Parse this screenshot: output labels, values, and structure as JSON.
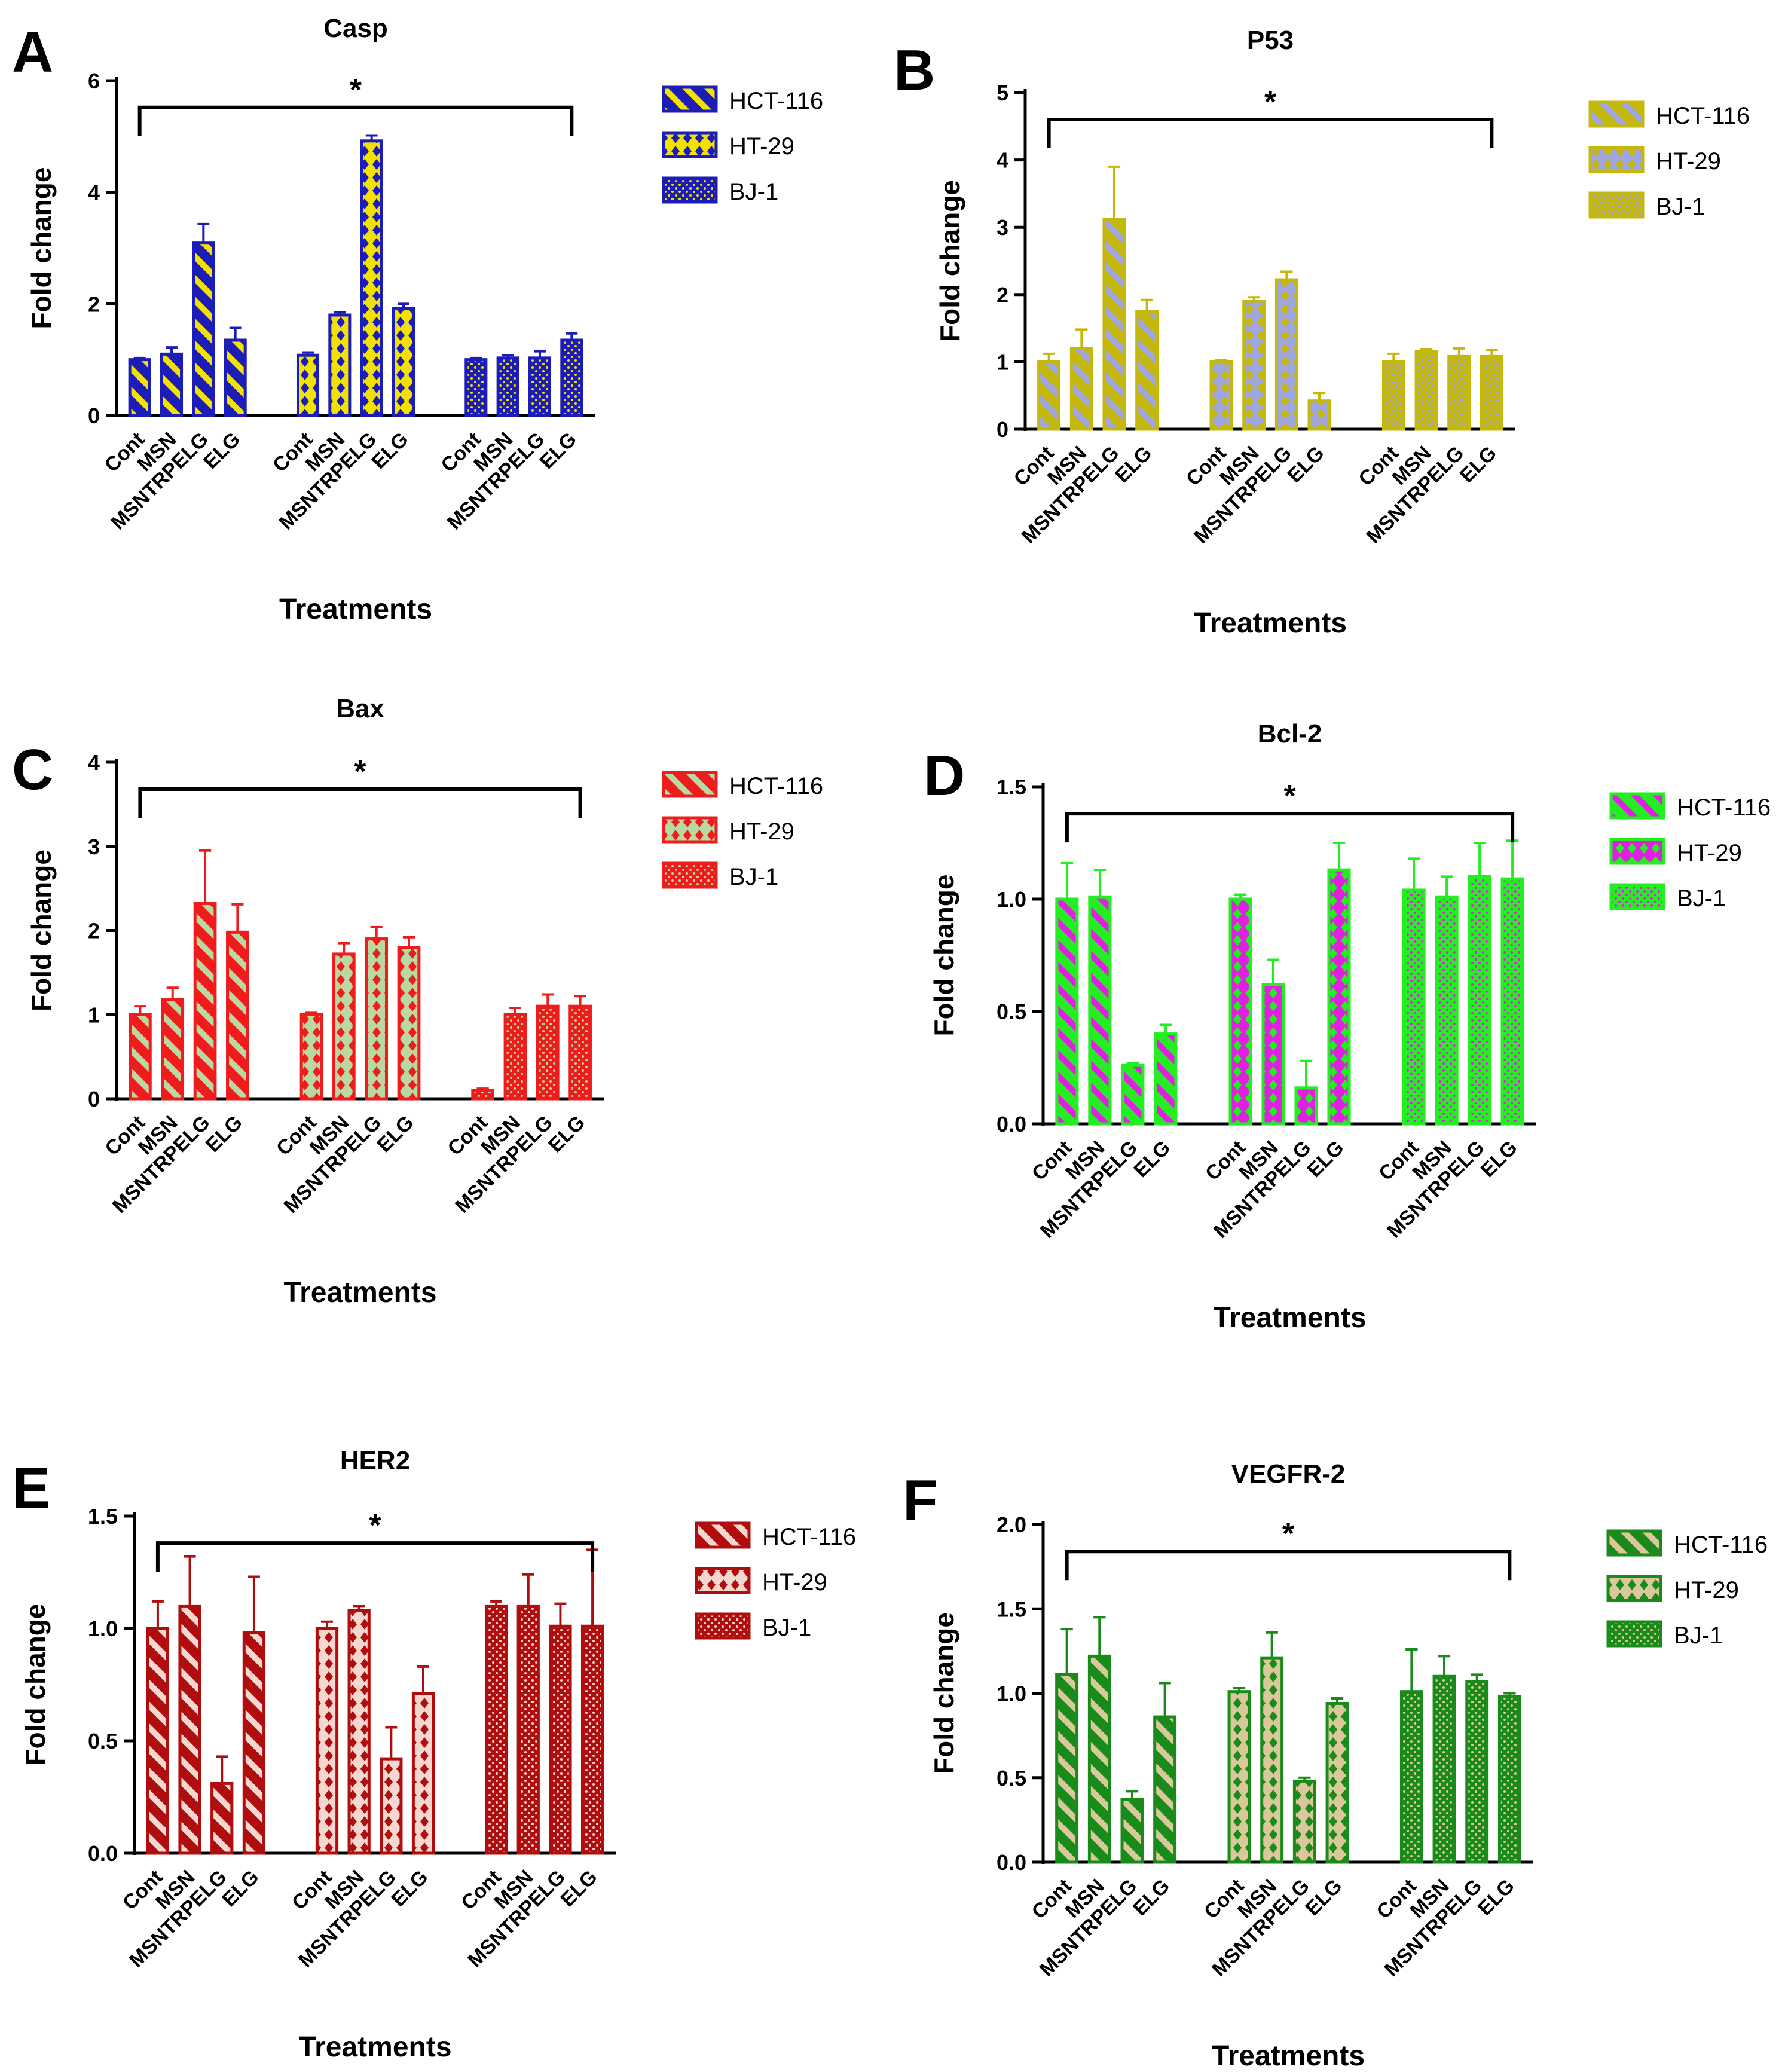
{
  "chart_data": [
    {
      "panel": "A",
      "type": "bar",
      "title": "Casp",
      "xlabel": "Treatments",
      "ylabel": "Fold change",
      "ylim": [
        0,
        6
      ],
      "ticks": [
        "0",
        "2",
        "4",
        "6"
      ],
      "tick_values": [
        0,
        2,
        4,
        6
      ],
      "significance": "*",
      "color": "#1C1CB8",
      "fill": "#F2E200",
      "categories": [
        "Cont",
        "MSN",
        "MSNTRPELG",
        "ELG"
      ],
      "series": [
        {
          "name": "HCT-116",
          "pattern": "diag",
          "values": [
            1.0,
            1.1,
            3.1,
            1.35
          ],
          "errors": [
            0.03,
            0.12,
            0.33,
            0.22
          ]
        },
        {
          "name": "HT-29",
          "pattern": "diamond",
          "values": [
            1.08,
            1.8,
            4.92,
            1.92
          ],
          "errors": [
            0.05,
            0.05,
            0.1,
            0.08
          ]
        },
        {
          "name": "BJ-1",
          "pattern": "dots",
          "values": [
            1.0,
            1.03,
            1.03,
            1.35
          ],
          "errors": [
            0.03,
            0.05,
            0.12,
            0.12
          ]
        }
      ]
    },
    {
      "panel": "B",
      "type": "bar",
      "title": "P53",
      "xlabel": "Treatments",
      "ylabel": "Fold change",
      "ylim": [
        0,
        5
      ],
      "ticks": [
        "0",
        "1",
        "2",
        "3",
        "4",
        "5"
      ],
      "tick_values": [
        0,
        1,
        2,
        3,
        4,
        5
      ],
      "significance": "*",
      "color": "#C4B80C",
      "fill": "#9FA6E0",
      "categories": [
        "Cont",
        "MSN",
        "MSNTRPELG",
        "ELG"
      ],
      "series": [
        {
          "name": "HCT-116",
          "pattern": "diag",
          "values": [
            1.0,
            1.2,
            3.12,
            1.75
          ],
          "errors": [
            0.12,
            0.28,
            0.78,
            0.17
          ]
        },
        {
          "name": "HT-29",
          "pattern": "diamond",
          "values": [
            1.0,
            1.9,
            2.22,
            0.42
          ],
          "errors": [
            0.03,
            0.06,
            0.12,
            0.12
          ]
        },
        {
          "name": "BJ-1",
          "pattern": "dots",
          "values": [
            1.0,
            1.15,
            1.08,
            1.08
          ],
          "errors": [
            0.12,
            0.04,
            0.12,
            0.1
          ]
        }
      ]
    },
    {
      "panel": "C",
      "type": "bar",
      "title": "Bax",
      "xlabel": "Treatments",
      "ylabel": "Fold change",
      "ylim": [
        0,
        4
      ],
      "ticks": [
        "0",
        "1",
        "2",
        "3",
        "4"
      ],
      "tick_values": [
        0,
        1,
        2,
        3,
        4
      ],
      "significance": "*",
      "color": "#EE1C1C",
      "fill": "#B9D9A0",
      "categories": [
        "Cont",
        "MSN",
        "MSNTRPELG",
        "ELG"
      ],
      "series": [
        {
          "name": "HCT-116",
          "pattern": "diag",
          "values": [
            1.0,
            1.18,
            2.32,
            1.98
          ],
          "errors": [
            0.1,
            0.14,
            0.63,
            0.33
          ]
        },
        {
          "name": "HT-29",
          "pattern": "diamond",
          "values": [
            1.0,
            1.72,
            1.9,
            1.8
          ],
          "errors": [
            0.02,
            0.13,
            0.14,
            0.12
          ]
        },
        {
          "name": "BJ-1",
          "pattern": "dots",
          "values": [
            0.1,
            1.0,
            1.1,
            1.1
          ],
          "errors": [
            0.02,
            0.08,
            0.14,
            0.12
          ]
        }
      ]
    },
    {
      "panel": "D",
      "type": "bar",
      "title": "Bcl-2",
      "xlabel": "Treatments",
      "ylabel": "Fold change",
      "ylim": [
        0,
        1.5
      ],
      "ticks": [
        "0.0",
        "0.5",
        "1.0",
        "1.5"
      ],
      "tick_values": [
        0,
        0.5,
        1.0,
        1.5
      ],
      "significance": "*",
      "color": "#22EE22",
      "fill": "#E020E0",
      "categories": [
        "Cont",
        "MSN",
        "MSNTRPELG",
        "ELG"
      ],
      "series": [
        {
          "name": "HCT-116",
          "pattern": "diag",
          "values": [
            1.0,
            1.01,
            0.26,
            0.4
          ],
          "errors": [
            0.16,
            0.12,
            0.01,
            0.04
          ]
        },
        {
          "name": "HT-29",
          "pattern": "diamond",
          "values": [
            1.0,
            0.62,
            0.16,
            1.13
          ],
          "errors": [
            0.02,
            0.11,
            0.12,
            0.12
          ]
        },
        {
          "name": "BJ-1",
          "pattern": "dots",
          "values": [
            1.04,
            1.01,
            1.1,
            1.09
          ],
          "errors": [
            0.14,
            0.09,
            0.15,
            0.17
          ]
        }
      ]
    },
    {
      "panel": "E",
      "type": "bar",
      "title": "HER2",
      "xlabel": "Treatments",
      "ylabel": "Fold change",
      "ylim": [
        0,
        1.5
      ],
      "ticks": [
        "0.0",
        "0.5",
        "1.0",
        "1.5"
      ],
      "tick_values": [
        0,
        0.5,
        1.0,
        1.5
      ],
      "significance": "*",
      "color": "#B00E0E",
      "fill": "#F4D8D0",
      "categories": [
        "Cont",
        "MSN",
        "MSNTRPELG",
        "ELG"
      ],
      "series": [
        {
          "name": "HCT-116",
          "pattern": "diag",
          "values": [
            1.0,
            1.1,
            0.31,
            0.98
          ],
          "errors": [
            0.12,
            0.22,
            0.12,
            0.25
          ]
        },
        {
          "name": "HT-29",
          "pattern": "diamond",
          "values": [
            1.0,
            1.08,
            0.42,
            0.71
          ],
          "errors": [
            0.03,
            0.02,
            0.14,
            0.12
          ]
        },
        {
          "name": "BJ-1",
          "pattern": "dots",
          "values": [
            1.1,
            1.1,
            1.01,
            1.01
          ],
          "errors": [
            0.02,
            0.14,
            0.1,
            0.34
          ]
        }
      ]
    },
    {
      "panel": "F",
      "type": "bar",
      "title": "VEGFR-2",
      "xlabel": "Treatments",
      "ylabel": "Fold change",
      "ylim": [
        0,
        2.0
      ],
      "ticks": [
        "0.0",
        "0.5",
        "1.0",
        "1.5",
        "2.0"
      ],
      "tick_values": [
        0,
        0.5,
        1.0,
        1.5,
        2.0
      ],
      "significance": "*",
      "color": "#1A8A1A",
      "fill": "#D9C89A",
      "categories": [
        "Cont",
        "MSN",
        "MSNTRPELG",
        "ELG"
      ],
      "series": [
        {
          "name": "HCT-116",
          "pattern": "diag",
          "values": [
            1.11,
            1.22,
            0.37,
            0.86
          ],
          "errors": [
            0.27,
            0.23,
            0.05,
            0.2
          ]
        },
        {
          "name": "HT-29",
          "pattern": "diamond",
          "values": [
            1.01,
            1.21,
            0.48,
            0.94
          ],
          "errors": [
            0.02,
            0.15,
            0.02,
            0.03
          ]
        },
        {
          "name": "BJ-1",
          "pattern": "dots",
          "values": [
            1.01,
            1.1,
            1.07,
            0.98
          ],
          "errors": [
            0.25,
            0.12,
            0.04,
            0.02
          ]
        }
      ]
    }
  ]
}
